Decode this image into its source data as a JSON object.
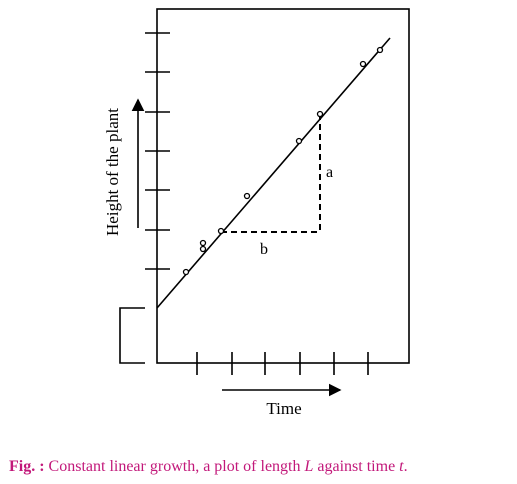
{
  "axes": {
    "y_label": "Height of the plant",
    "x_label": "Time"
  },
  "annotations": {
    "a": "a",
    "b": "b"
  },
  "caption": {
    "label": "Fig. :",
    "segments": [
      "Constant linear growth, a plot of length ",
      "L",
      " against time ",
      "t",
      "."
    ]
  }
}
